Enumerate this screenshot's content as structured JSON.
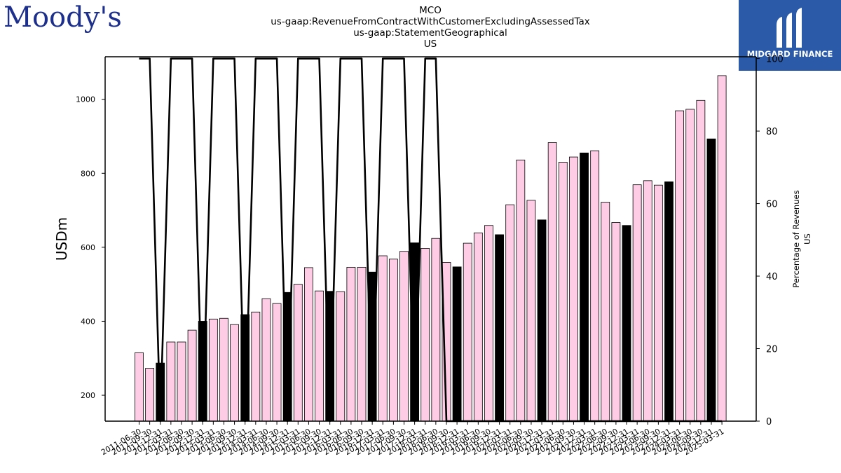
{
  "header": {
    "left_logo": "Moody's",
    "right_logo": "MIDGARD FINANCE",
    "title_lines": [
      "MCO",
      "us-gaap:RevenueFromContractWithCustomerExcludingAssessedTax",
      "us-gaap:StatementGeographical",
      "US"
    ]
  },
  "colors": {
    "brand_left": "#1c2f8c",
    "brand_right": "#2b5aa8",
    "bar_light": "#ffcce6",
    "bar_dark": "#000000",
    "line": "#000000"
  },
  "chart_data": {
    "type": "bar",
    "title": "MCO us-gaap:RevenueFromContractWithCustomerExcludingAssessedTax us-gaap:StatementGeographical US",
    "ylabel": "USDm",
    "y2label_lines": [
      "Percentage of Revenues",
      "US"
    ],
    "ylim": [
      130,
      1115
    ],
    "y2lim": [
      0,
      100.5
    ],
    "yticks": [
      200,
      400,
      600,
      800,
      1000
    ],
    "y2ticks": [
      0,
      20,
      40,
      60,
      80,
      100
    ],
    "grid": false,
    "x_tick_labels": [
      "2011-06-30",
      "2011-09-30",
      "2011-12-31",
      "2012-03-31",
      "2012-06-30",
      "2012-09-30",
      "2012-12-31",
      "2013-03-31",
      "2013-06-30",
      "2013-09-30",
      "2013-12-31",
      "2014-03-31",
      "2014-06-30",
      "2014-09-30",
      "2014-12-31",
      "2015-03-31",
      "2015-06-30",
      "2015-09-30",
      "2015-12-31",
      "2016-03-31",
      "2016-06-30",
      "2016-09-30",
      "2016-12-31",
      "2017-03-31",
      "2017-06-30",
      "2017-09-30",
      "2017-12-31",
      "2018-03-31",
      "2018-06-30",
      "2018-09-30",
      "2018-12-31",
      "2019-03-31",
      "2019-06-30",
      "2019-09-30",
      "2019-12-31",
      "2020-03-31",
      "2020-06-30",
      "2020-09-30",
      "2020-12-31",
      "2021-03-31",
      "2021-06-30",
      "2021-09-30",
      "2021-12-31",
      "2022-03-31",
      "2022-06-30",
      "2022-09-30",
      "2022-12-31",
      "2023-03-31",
      "2023-06-30",
      "2023-09-30",
      "2023-12-31",
      "2024-03-31",
      "2024-06-30",
      "2024-09-30",
      "2024-12-31",
      "2025-03-31"
    ],
    "series": [
      {
        "type": "bar",
        "values": [
          315,
          273,
          287,
          344,
          344,
          376,
          400,
          406,
          408,
          391,
          418,
          425,
          461,
          448,
          478,
          500,
          545,
          482,
          481,
          480,
          546,
          546,
          533,
          577,
          568,
          589,
          612,
          597,
          624,
          559,
          547,
          611,
          639,
          659,
          634,
          715,
          836,
          727,
          674,
          883,
          830,
          844,
          855,
          861,
          722,
          667,
          659,
          769,
          780,
          768,
          777,
          969,
          973,
          997,
          893,
          1064
        ],
        "dark": [
          false,
          false,
          true,
          false,
          false,
          false,
          true,
          false,
          false,
          false,
          true,
          false,
          false,
          false,
          true,
          false,
          false,
          false,
          true,
          false,
          false,
          false,
          true,
          false,
          false,
          false,
          true,
          false,
          false,
          false,
          true,
          false,
          false,
          false,
          true,
          false,
          false,
          false,
          true,
          false,
          false,
          false,
          true,
          false,
          false,
          false,
          true,
          false,
          false,
          false,
          true,
          false,
          false,
          false,
          true,
          false
        ]
      },
      {
        "type": "line",
        "values": [
          100,
          100,
          0,
          100,
          100,
          100,
          0,
          100,
          100,
          100,
          0,
          100,
          100,
          100,
          0,
          100,
          100,
          100,
          0,
          100,
          100,
          100,
          0,
          100,
          100,
          100,
          0,
          100,
          100,
          0,
          0,
          0,
          0,
          0,
          0,
          0,
          0,
          0,
          0,
          0,
          0,
          0,
          0,
          0,
          0,
          0,
          0,
          0,
          0,
          0,
          0,
          0,
          0,
          0,
          0,
          0
        ]
      }
    ]
  }
}
